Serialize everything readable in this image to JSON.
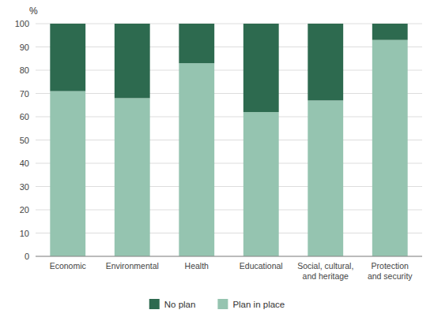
{
  "chart_data": {
    "type": "bar",
    "stacked": true,
    "categories": [
      "Economic",
      "Environmental",
      "Health",
      "Educational",
      "Social, cultural,\nand heritage",
      "Protection\nand security"
    ],
    "series": [
      {
        "name": "Plan in place",
        "color": "#95c4b0",
        "values": [
          71,
          68,
          83,
          62,
          67,
          93
        ]
      },
      {
        "name": "No plan",
        "color": "#2d6a4f",
        "values": [
          29,
          32,
          17,
          38,
          33,
          7
        ]
      }
    ],
    "y_label": "%",
    "ylim": [
      0,
      100
    ],
    "yticks": [
      0,
      10,
      20,
      30,
      40,
      50,
      60,
      70,
      80,
      90,
      100
    ],
    "grid": true,
    "legend": "bottom"
  }
}
